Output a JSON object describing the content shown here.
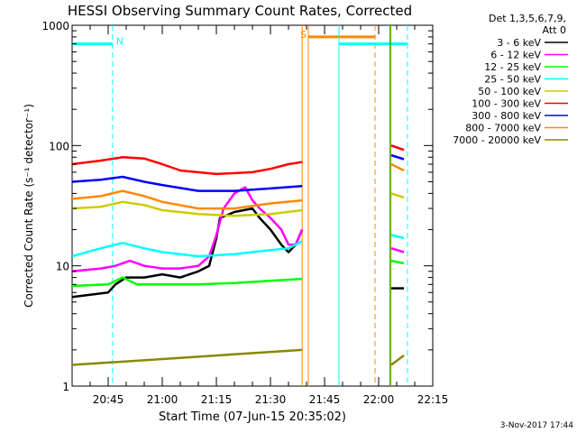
{
  "chart_data": {
    "type": "line",
    "title": "HESSI Observing Summary Count Rates, Corrected",
    "xlabel": "Start Time (07-Jun-15 20:35:02)",
    "ylabel": "Corrected Count Rate (s⁻¹ detector⁻¹)",
    "y_scale": "log",
    "ylim": [
      1,
      1000
    ],
    "xlim_minutes_after_start": [
      0,
      100
    ],
    "x_ticks": [
      {
        "label": "20:45",
        "t": 10
      },
      {
        "label": "21:00",
        "t": 25
      },
      {
        "label": "21:15",
        "t": 40
      },
      {
        "label": "21:30",
        "t": 55
      },
      {
        "label": "21:45",
        "t": 70
      },
      {
        "label": "22:00",
        "t": 85
      },
      {
        "label": "22:15",
        "t": 100
      }
    ],
    "y_ticks": [
      {
        "label": "1",
        "v": 1
      },
      {
        "label": "10",
        "v": 10
      },
      {
        "label": "100",
        "v": 100
      },
      {
        "label": "1000",
        "v": 1000
      }
    ],
    "legend_title": [
      "Det 1,3,5,6,7,9,",
      "Att 0"
    ],
    "legend_placement": "right",
    "timestamp": "3-Nov-2017 17:44",
    "series": [
      {
        "name": "3 - 6 keV",
        "color": "#000000",
        "segments": [
          [
            [
              0,
              5.5
            ],
            [
              10,
              6
            ],
            [
              12,
              7
            ],
            [
              15,
              8
            ],
            [
              20,
              8
            ],
            [
              25,
              8.5
            ],
            [
              30,
              8
            ],
            [
              35,
              9
            ],
            [
              38,
              10
            ],
            [
              40,
              17
            ],
            [
              41,
              25
            ],
            [
              45,
              28
            ],
            [
              50,
              30
            ],
            [
              52,
              25
            ],
            [
              55,
              20
            ],
            [
              58,
              15
            ],
            [
              60,
              13
            ],
            [
              62,
              15
            ],
            [
              63.8,
              20
            ]
          ],
          [
            [
              88.5,
              6.5
            ],
            [
              92,
              6.5
            ]
          ]
        ]
      },
      {
        "name": "6 - 12 keV",
        "color": "#ff00ff",
        "segments": [
          [
            [
              0,
              9
            ],
            [
              8,
              9.5
            ],
            [
              12,
              10
            ],
            [
              16,
              11
            ],
            [
              20,
              10
            ],
            [
              25,
              9.5
            ],
            [
              30,
              9.5
            ],
            [
              35,
              10
            ],
            [
              38,
              12
            ],
            [
              40,
              18
            ],
            [
              42,
              30
            ],
            [
              45,
              40
            ],
            [
              48,
              45
            ],
            [
              50,
              35
            ],
            [
              52,
              30
            ],
            [
              55,
              25
            ],
            [
              58,
              20
            ],
            [
              60,
              15
            ],
            [
              62,
              15
            ],
            [
              63.8,
              20
            ]
          ],
          [
            [
              88.5,
              14
            ],
            [
              92,
              13
            ]
          ]
        ]
      },
      {
        "name": "12 - 25 keV",
        "color": "#00ff00",
        "segments": [
          [
            [
              0,
              6.8
            ],
            [
              10,
              7
            ],
            [
              14,
              8
            ],
            [
              18,
              7
            ],
            [
              25,
              7
            ],
            [
              35,
              7
            ],
            [
              45,
              7.2
            ],
            [
              55,
              7.5
            ],
            [
              63.8,
              7.8
            ]
          ],
          [
            [
              88.5,
              11
            ],
            [
              92,
              10.5
            ]
          ]
        ]
      },
      {
        "name": "25 - 50 keV",
        "color": "#00ffff",
        "segments": [
          [
            [
              0,
              12
            ],
            [
              8,
              14
            ],
            [
              14,
              15.5
            ],
            [
              20,
              14
            ],
            [
              25,
              13
            ],
            [
              35,
              12
            ],
            [
              45,
              12.5
            ],
            [
              55,
              13.5
            ],
            [
              60,
              14
            ],
            [
              63.8,
              16
            ]
          ],
          [
            [
              88.5,
              18
            ],
            [
              92,
              17
            ]
          ]
        ]
      },
      {
        "name": "50 - 100 keV",
        "color": "#cccc00",
        "segments": [
          [
            [
              0,
              30
            ],
            [
              8,
              31
            ],
            [
              14,
              34
            ],
            [
              20,
              32
            ],
            [
              25,
              29
            ],
            [
              35,
              27
            ],
            [
              45,
              26
            ],
            [
              55,
              27
            ],
            [
              63.8,
              29
            ]
          ],
          [
            [
              88.5,
              40
            ],
            [
              92,
              37
            ]
          ]
        ]
      },
      {
        "name": "100 - 300 keV",
        "color": "#ff0000",
        "segments": [
          [
            [
              0,
              70
            ],
            [
              8,
              75
            ],
            [
              14,
              80
            ],
            [
              20,
              78
            ],
            [
              25,
              70
            ],
            [
              30,
              62
            ],
            [
              40,
              58
            ],
            [
              50,
              60
            ],
            [
              55,
              64
            ],
            [
              60,
              70
            ],
            [
              63.8,
              73
            ]
          ],
          [
            [
              88.5,
              100
            ],
            [
              92,
              92
            ]
          ]
        ]
      },
      {
        "name": "300 - 800 keV",
        "color": "#0000ff",
        "segments": [
          [
            [
              0,
              50
            ],
            [
              8,
              52
            ],
            [
              14,
              55
            ],
            [
              20,
              50
            ],
            [
              25,
              47
            ],
            [
              35,
              42
            ],
            [
              45,
              42
            ],
            [
              55,
              44
            ],
            [
              63.8,
              46
            ]
          ],
          [
            [
              88.5,
              83
            ],
            [
              92,
              77
            ]
          ]
        ]
      },
      {
        "name": "800 - 7000 keV",
        "color": "#ff8800",
        "segments": [
          [
            [
              0,
              36
            ],
            [
              8,
              38
            ],
            [
              14,
              42
            ],
            [
              20,
              38
            ],
            [
              25,
              34
            ],
            [
              35,
              30
            ],
            [
              45,
              30
            ],
            [
              55,
              33
            ],
            [
              63.8,
              35
            ]
          ],
          [
            [
              88.5,
              70
            ],
            [
              92,
              62
            ]
          ]
        ]
      },
      {
        "name": "7000 - 20000 keV",
        "color": "#888800",
        "segments": [
          [
            [
              0,
              1.5
            ],
            [
              63.8,
              2
            ]
          ],
          [
            [
              88.5,
              1.5
            ],
            [
              92,
              1.8
            ]
          ]
        ]
      }
    ],
    "annotations": [
      {
        "type": "hbar",
        "label": "N",
        "color": "#00ffff",
        "t_from": 0.3,
        "t_to": 11.2,
        "v": 700
      },
      {
        "type": "vline",
        "t": 11.2,
        "color": "#00ffff",
        "style": "dashed"
      },
      {
        "type": "hbar",
        "label": "S",
        "color": "#ff8800",
        "t_from": 65.5,
        "t_to": 84,
        "v": 800
      },
      {
        "type": "vline",
        "t": 65.5,
        "color": "#ff8800",
        "style": "solid"
      },
      {
        "type": "vline",
        "t": 84,
        "color": "#ff8800",
        "style": "dashed"
      },
      {
        "type": "hbar",
        "label": "",
        "color": "#00ffff",
        "t_from": 74,
        "t_to": 93,
        "v": 700
      },
      {
        "type": "vline",
        "t": 74,
        "color": "#00ffff",
        "style": "solid"
      },
      {
        "type": "vline",
        "t": 93,
        "color": "#00ffff",
        "style": "dashed"
      },
      {
        "type": "vline",
        "t": 63.8,
        "color": "#ff8800",
        "style": "solid"
      },
      {
        "type": "vline",
        "t": 88.2,
        "color": "#ff0000",
        "style": "solid"
      },
      {
        "type": "vline",
        "t": 88.4,
        "color": "#00ff00",
        "style": "solid"
      }
    ]
  }
}
